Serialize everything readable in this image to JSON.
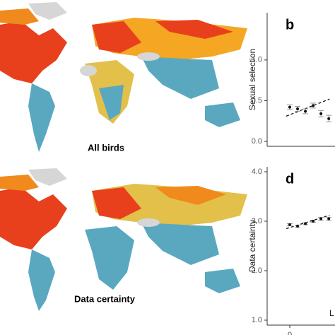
{
  "maps": [
    {
      "label": "All birds"
    },
    {
      "label": "Data certainty"
    }
  ],
  "chart_data": [
    {
      "type": "scatter",
      "panel": "b",
      "ylabel": "Sexual selection",
      "x": [
        0,
        1,
        2,
        3,
        4,
        5
      ],
      "values": [
        0.42,
        0.4,
        0.37,
        0.44,
        0.34,
        0.28
      ],
      "errors": [
        0.03,
        0.03,
        0.03,
        0.03,
        0.04,
        0.04
      ],
      "trend": {
        "x": [
          -0.45,
          5.1
        ],
        "values": [
          0.31,
          0.52
        ]
      },
      "xlim": [
        -2.9,
        5.8
      ],
      "ylim": [
        -0.06,
        1.58
      ],
      "yticks": [
        {
          "value": 0,
          "label": "0.0"
        },
        0.5,
        {
          "value": 1,
          "label": "1.0"
        }
      ]
    },
    {
      "type": "scatter",
      "panel": "d",
      "ylabel": "Data certainty",
      "xlabel": "L",
      "x": [
        0,
        1,
        2,
        3,
        4,
        5
      ],
      "values": [
        2.93,
        2.9,
        2.95,
        3.0,
        3.05,
        3.05
      ],
      "errors": [
        0.02,
        0.02,
        0.02,
        0.02,
        0.03,
        0.03
      ],
      "trend": {
        "x": [
          -0.45,
          5.1
        ],
        "values": [
          2.85,
          3.12
        ]
      },
      "xlim": [
        -2.9,
        5.8
      ],
      "ylim": [
        0.9,
        4.1
      ],
      "xticks": [
        0
      ],
      "yticks": [
        {
          "value": 1,
          "label": "1.0"
        },
        {
          "value": 2,
          "label": "2.0"
        },
        {
          "value": 3,
          "label": "3.0"
        },
        {
          "value": 4,
          "label": "4.0"
        }
      ]
    }
  ]
}
